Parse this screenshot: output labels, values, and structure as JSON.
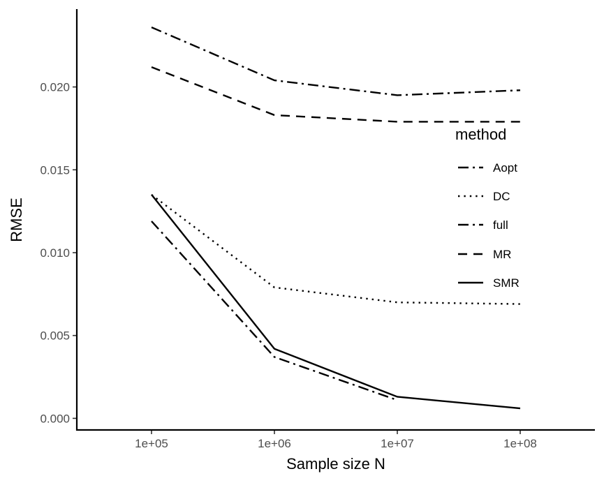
{
  "chart_data": {
    "type": "line",
    "title": "",
    "xlabel": "Sample size N",
    "ylabel": "RMSE",
    "categories": [
      "1e+05",
      "1e+06",
      "1e+07",
      "1e+08"
    ],
    "yticks": [
      "0.000",
      "0.005",
      "0.010",
      "0.015",
      "0.020"
    ],
    "ylim": [
      -0.0007,
      0.0247
    ],
    "legend_title": "method",
    "legend_position": "right",
    "grid": false,
    "series": [
      {
        "name": "Aopt",
        "linetype": "dashdot",
        "values": [
          0.0236,
          0.0204,
          0.0195,
          0.0198
        ]
      },
      {
        "name": "DC",
        "linetype": "dotted",
        "values": [
          0.0135,
          0.0079,
          0.007,
          0.0069
        ]
      },
      {
        "name": "full",
        "linetype": "dashdot",
        "values": [
          0.0119,
          0.0037,
          0.0011,
          null
        ]
      },
      {
        "name": "MR",
        "linetype": "dashed",
        "values": [
          0.0212,
          0.0183,
          0.0179,
          0.0179
        ]
      },
      {
        "name": "SMR",
        "linetype": "solid",
        "values": [
          0.0135,
          0.0042,
          0.0013,
          0.0006
        ]
      }
    ],
    "colors": {
      "line": "#000000",
      "tick_text": "#4d4d4d"
    }
  }
}
